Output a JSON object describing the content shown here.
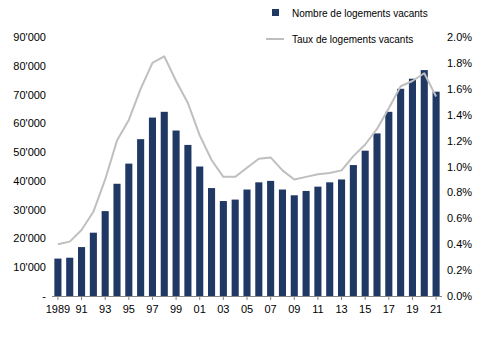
{
  "chart_data": {
    "type": "bar",
    "categories": [
      "1989",
      null,
      "91",
      null,
      "93",
      null,
      "95",
      null,
      "97",
      null,
      "99",
      null,
      "01",
      null,
      "03",
      null,
      "05",
      null,
      "07",
      null,
      "09",
      null,
      "11",
      null,
      "13",
      null,
      "15",
      null,
      "17",
      null,
      "19",
      null,
      "21"
    ],
    "series": [
      {
        "name": "Nombre de logements vacants",
        "type": "bar",
        "color": "#203864",
        "values": [
          13000,
          13300,
          17000,
          22000,
          29500,
          39000,
          46000,
          54500,
          62000,
          64000,
          57500,
          52500,
          45000,
          37500,
          33000,
          33500,
          37000,
          39500,
          40000,
          37000,
          35000,
          36500,
          38000,
          39500,
          40500,
          45500,
          50500,
          56500,
          64000,
          72000,
          75500,
          78500,
          71000
        ]
      },
      {
        "name": "Taux de logements vacants",
        "type": "line",
        "axis": "y2",
        "color": "#bfbfbf",
        "values": [
          0.4,
          0.42,
          0.51,
          0.65,
          0.9,
          1.2,
          1.36,
          1.6,
          1.8,
          1.85,
          1.66,
          1.49,
          1.24,
          1.05,
          0.92,
          0.92,
          0.99,
          1.06,
          1.07,
          0.97,
          0.9,
          0.92,
          0.94,
          0.95,
          0.97,
          1.08,
          1.17,
          1.29,
          1.45,
          1.62,
          1.66,
          1.72,
          1.54
        ]
      }
    ],
    "ylim": [
      0,
      90000
    ],
    "yticks": [
      {
        "value": 0,
        "label": "-"
      },
      {
        "value": 10000,
        "label": "10'000"
      },
      {
        "value": 20000,
        "label": "20'000"
      },
      {
        "value": 30000,
        "label": "30'000"
      },
      {
        "value": 40000,
        "label": "40'000"
      },
      {
        "value": 50000,
        "label": "50'000"
      },
      {
        "value": 60000,
        "label": "60'000"
      },
      {
        "value": 70000,
        "label": "70'000"
      },
      {
        "value": 80000,
        "label": "80'000"
      },
      {
        "value": 90000,
        "label": "90'000"
      }
    ],
    "y2lim": [
      0,
      2.0
    ],
    "y2ticks": [
      {
        "value": 0,
        "label": "0.0%"
      },
      {
        "value": 0.2,
        "label": "0.2%"
      },
      {
        "value": 0.4,
        "label": "0.4%"
      },
      {
        "value": 0.6,
        "label": "0.6%"
      },
      {
        "value": 0.8,
        "label": "0.8%"
      },
      {
        "value": 1.0,
        "label": "1.0%"
      },
      {
        "value": 1.2,
        "label": "1.2%"
      },
      {
        "value": 1.4,
        "label": "1.4%"
      },
      {
        "value": 1.6,
        "label": "1.6%"
      },
      {
        "value": 1.8,
        "label": "1.8%"
      },
      {
        "value": 2.0,
        "label": "2.0%"
      }
    ],
    "grid": false,
    "legend": "top-right"
  }
}
